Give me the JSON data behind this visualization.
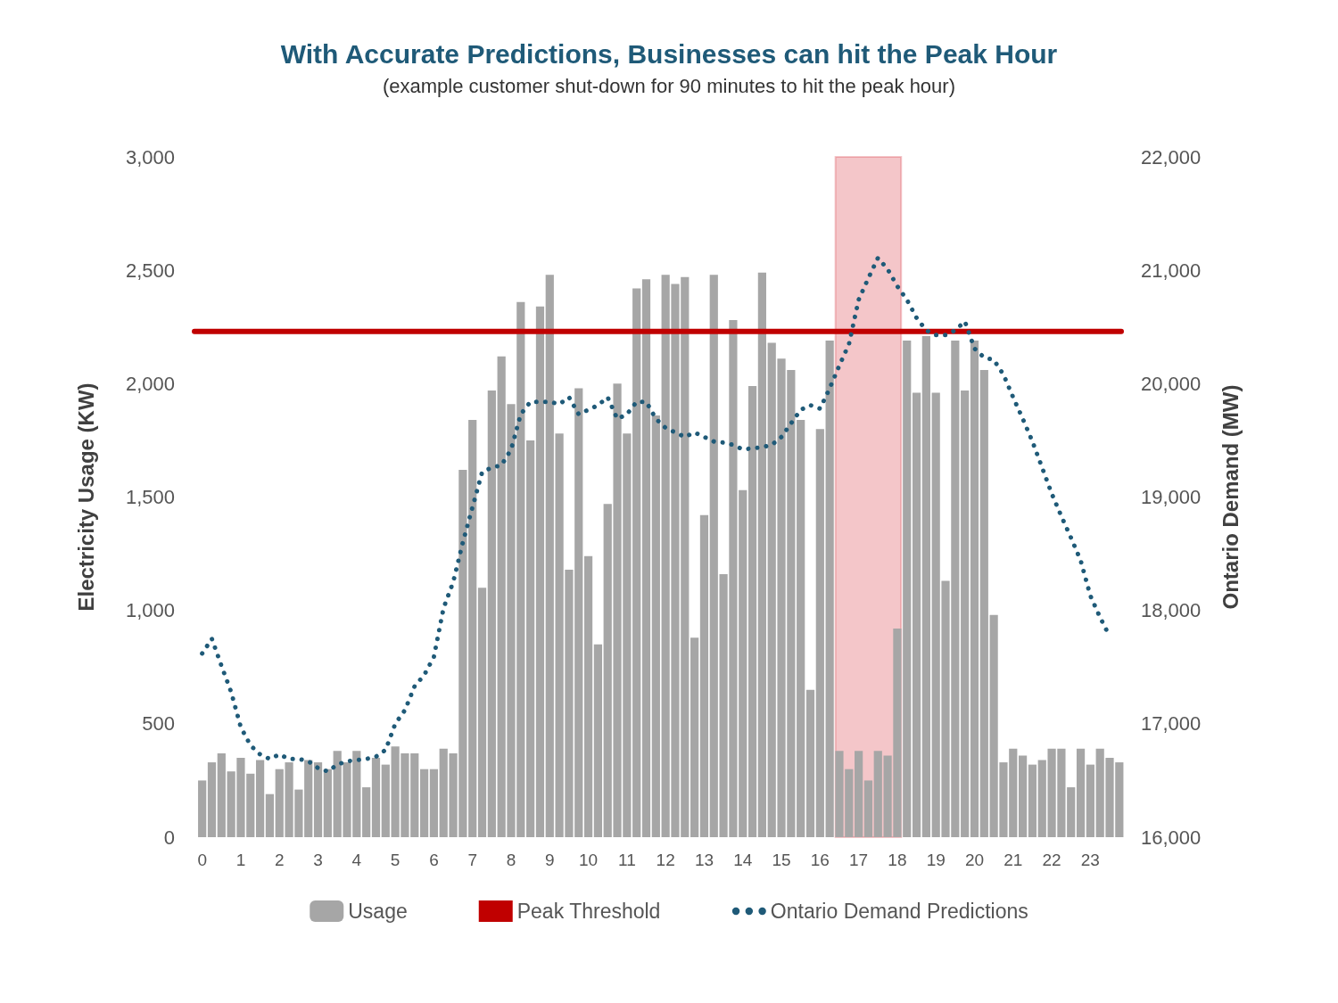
{
  "chart_data": {
    "type": "bar",
    "title": "With Accurate Predictions, Businesses can hit the Peak Hour",
    "subtitle": "(example customer shut-down for 90 minutes to hit the peak hour)",
    "ylabel": "Electricity Usage (KW)",
    "y2label": "Ontario Demand (MW)",
    "xlim": [
      -0.2,
      23.8
    ],
    "xticks": [
      0,
      1,
      2,
      3,
      4,
      5,
      6,
      7,
      8,
      9,
      10,
      11,
      12,
      13,
      14,
      15,
      16,
      17,
      18,
      19,
      20,
      21,
      22,
      23
    ],
    "ylim": [
      0,
      3000
    ],
    "yticks": [
      {
        "value": 0,
        "label": "0"
      },
      {
        "value": 500,
        "label": "500"
      },
      {
        "value": 1000,
        "label": "1,000"
      },
      {
        "value": 1500,
        "label": "1,500"
      },
      {
        "value": 2000,
        "label": "2,000"
      },
      {
        "value": 2500,
        "label": "2,500"
      },
      {
        "value": 3000,
        "label": "3,000"
      }
    ],
    "y2lim": [
      16000,
      22000
    ],
    "y2ticks": [
      {
        "value": 16000,
        "label": "16,000"
      },
      {
        "value": 17000,
        "label": "17,000"
      },
      {
        "value": 18000,
        "label": "18,000"
      },
      {
        "value": 19000,
        "label": "19,000"
      },
      {
        "value": 20000,
        "label": "20,000"
      },
      {
        "value": 21000,
        "label": "21,000"
      },
      {
        "value": 22000,
        "label": "22,000"
      }
    ],
    "grid": false,
    "legend": "bottom",
    "bands": [
      {
        "axis": "x",
        "from": 16.4,
        "to": 18.1,
        "color": "#d9434b"
      }
    ],
    "series": [
      {
        "name": "Usage",
        "color": "#a6a6a6",
        "x": [
          0,
          0.25,
          0.5,
          0.75,
          1,
          1.25,
          1.5,
          1.75,
          2,
          2.25,
          2.5,
          2.75,
          3,
          3.25,
          3.5,
          3.75,
          4,
          4.25,
          4.5,
          4.75,
          5,
          5.25,
          5.5,
          5.75,
          6,
          6.25,
          6.5,
          6.75,
          7,
          7.25,
          7.5,
          7.75,
          8,
          8.25,
          8.5,
          8.75,
          9,
          9.25,
          9.5,
          9.75,
          10,
          10.25,
          10.5,
          10.75,
          11,
          11.25,
          11.5,
          11.75,
          12,
          12.25,
          12.5,
          12.75,
          13,
          13.25,
          13.5,
          13.75,
          14,
          14.25,
          14.5,
          14.75,
          15,
          15.25,
          15.5,
          15.75,
          16,
          16.25,
          16.5,
          16.75,
          17,
          17.25,
          17.5,
          17.75,
          18,
          18.25,
          18.5,
          18.75,
          19,
          19.25,
          19.5,
          19.75,
          20,
          20.25,
          20.5,
          20.75,
          21,
          21.25,
          21.5,
          21.75,
          22,
          22.25,
          22.5,
          22.75,
          23,
          23.25,
          23.5,
          23.75
        ],
        "values": [
          250,
          330,
          370,
          290,
          350,
          280,
          340,
          190,
          300,
          330,
          210,
          340,
          330,
          300,
          380,
          330,
          380,
          220,
          350,
          320,
          400,
          370,
          370,
          300,
          300,
          390,
          370,
          1620,
          1840,
          1100,
          1970,
          2120,
          1910,
          2360,
          1750,
          2340,
          2480,
          1780,
          1180,
          1980,
          1240,
          850,
          1470,
          2000,
          1780,
          2420,
          2460,
          1860,
          2480,
          2440,
          2470,
          880,
          1420,
          2480,
          1160,
          2280,
          1530,
          1990,
          2490,
          2180,
          2110,
          2060,
          1840,
          650,
          1800,
          2190,
          380,
          300,
          380,
          250,
          380,
          360,
          920,
          2190,
          1960,
          2210,
          1960,
          1130,
          2190,
          1970,
          2190,
          2060,
          980,
          330,
          390,
          360,
          320,
          340,
          390,
          390,
          220,
          390,
          320,
          390,
          350,
          330
        ]
      },
      {
        "name": "Peak Threshold",
        "type": "line",
        "axis": "y2",
        "color": "#c00000",
        "line_style": "solid",
        "x": [
          -0.2,
          23.8
        ],
        "values": [
          20460,
          20460
        ]
      },
      {
        "name": "Ontario Demand Predictions",
        "type": "line",
        "axis": "y2",
        "color": "#1f5a78",
        "line_style": "dotted",
        "x": [
          0,
          0.25,
          0.5,
          0.75,
          1,
          1.25,
          1.5,
          1.75,
          2,
          2.25,
          2.5,
          2.75,
          3,
          3.25,
          3.5,
          3.75,
          4,
          4.25,
          4.5,
          4.75,
          5,
          5.25,
          5.5,
          5.75,
          6,
          6.25,
          6.5,
          6.75,
          7,
          7.25,
          7.5,
          7.75,
          8,
          8.25,
          8.5,
          8.75,
          9,
          9.25,
          9.5,
          9.75,
          10,
          10.25,
          10.5,
          10.75,
          11,
          11.25,
          11.5,
          11.75,
          12,
          12.25,
          12.5,
          12.75,
          13,
          13.25,
          13.5,
          13.75,
          14,
          14.25,
          14.5,
          14.75,
          15,
          15.25,
          15.5,
          15.75,
          16,
          16.25,
          16.5,
          16.75,
          17,
          17.25,
          17.5,
          17.75,
          18,
          18.25,
          18.5,
          18.75,
          19,
          19.25,
          19.5,
          19.75,
          20,
          20.25,
          20.5,
          20.75,
          21,
          21.25,
          21.5,
          21.75,
          22,
          22.25,
          22.5,
          22.75,
          23,
          23.25,
          23.5
        ],
        "values": [
          17620,
          17750,
          17510,
          17280,
          16970,
          16810,
          16730,
          16690,
          16730,
          16690,
          16690,
          16670,
          16610,
          16580,
          16640,
          16670,
          16680,
          16690,
          16710,
          16770,
          17000,
          17120,
          17330,
          17430,
          17590,
          18020,
          18250,
          18600,
          18910,
          19220,
          19260,
          19280,
          19420,
          19730,
          19840,
          19840,
          19840,
          19820,
          19880,
          19730,
          19770,
          19810,
          19880,
          19690,
          19730,
          19840,
          19840,
          19690,
          19610,
          19570,
          19530,
          19570,
          19530,
          19490,
          19480,
          19460,
          19420,
          19430,
          19440,
          19460,
          19530,
          19650,
          19770,
          19810,
          19780,
          19960,
          20160,
          20350,
          20740,
          20930,
          21110,
          21010,
          20860,
          20740,
          20580,
          20470,
          20430,
          20430,
          20470,
          20550,
          20310,
          20230,
          20210,
          20080,
          19880,
          19690,
          19490,
          19260,
          19030,
          18830,
          18640,
          18440,
          18130,
          17940,
          17770
        ]
      }
    ]
  }
}
